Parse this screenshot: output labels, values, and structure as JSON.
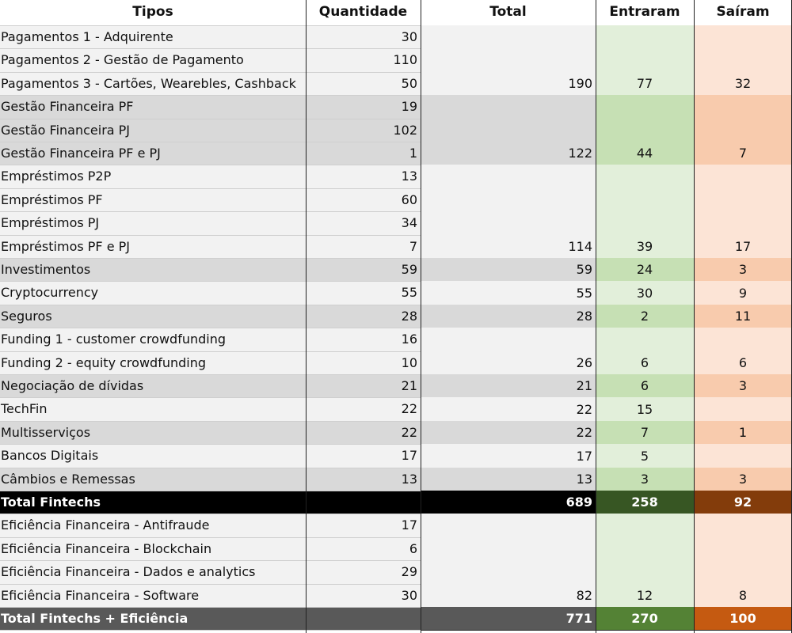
{
  "headers": {
    "tipos": "Tipos",
    "quantidade": "Quantidade",
    "total": "Total",
    "entraram": "Entraram",
    "sairam": "Saíram"
  },
  "rows": [
    {
      "tipo": "Pagamentos 1 - Adquirente",
      "quantidade": "30"
    },
    {
      "tipo": "Pagamentos 2 - Gestão de Pagamento",
      "quantidade": "110"
    },
    {
      "tipo": "Pagamentos 3 - Cartões, Wearebles, Cashback",
      "quantidade": "50"
    },
    {
      "tipo": "Gestão Financeira PF",
      "quantidade": "19"
    },
    {
      "tipo": "Gestão Financeira PJ",
      "quantidade": "102"
    },
    {
      "tipo": "Gestão Financeira PF e PJ",
      "quantidade": "1"
    },
    {
      "tipo": "Empréstimos P2P",
      "quantidade": "13"
    },
    {
      "tipo": "Empréstimos PF",
      "quantidade": "60"
    },
    {
      "tipo": "Empréstimos PJ",
      "quantidade": "34"
    },
    {
      "tipo": "Empréstimos PF e PJ",
      "quantidade": "7"
    },
    {
      "tipo": "Investimentos",
      "quantidade": "59"
    },
    {
      "tipo": "Cryptocurrency",
      "quantidade": "55"
    },
    {
      "tipo": "Seguros",
      "quantidade": "28"
    },
    {
      "tipo": "Funding 1 - customer crowdfunding",
      "quantidade": "16"
    },
    {
      "tipo": "Funding 2 - equity crowdfunding",
      "quantidade": "10"
    },
    {
      "tipo": "Negociação de dívidas",
      "quantidade": "21"
    },
    {
      "tipo": "TechFin",
      "quantidade": "22"
    },
    {
      "tipo": "Multisserviços",
      "quantidade": "22"
    },
    {
      "tipo": "Bancos Digitais",
      "quantidade": "17"
    },
    {
      "tipo": "Câmbios e Remessas",
      "quantidade": "13"
    },
    {
      "tipo": "Total Fintechs",
      "quantidade": ""
    },
    {
      "tipo": "Eficiência Financeira - Antifraude",
      "quantidade": "17"
    },
    {
      "tipo": "Eficiência Financeira - Blockchain",
      "quantidade": "6"
    },
    {
      "tipo": "Eficiência Financeira - Dados e analytics",
      "quantidade": "29"
    },
    {
      "tipo": "Eficiência Financeira - Software",
      "quantidade": "30"
    },
    {
      "tipo": "Total Fintechs + Eficiência",
      "quantidade": ""
    }
  ],
  "groups": [
    {
      "label": "Pagamentos",
      "total": "190",
      "entraram": "77",
      "sairam": "32"
    },
    {
      "label": "Gestão Financeira",
      "total": "122",
      "entraram": "44",
      "sairam": "7"
    },
    {
      "label": "Empréstimos",
      "total": "114",
      "entraram": "39",
      "sairam": "17"
    },
    {
      "label": "Investimentos",
      "total": "59",
      "entraram": "24",
      "sairam": "3"
    },
    {
      "label": "Cryptocurrency",
      "total": "55",
      "entraram": "30",
      "sairam": "9"
    },
    {
      "label": "Seguros",
      "total": "28",
      "entraram": "2",
      "sairam": "11"
    },
    {
      "label": "Funding",
      "total": "26",
      "entraram": "6",
      "sairam": "6"
    },
    {
      "label": "Negociação de dívidas",
      "total": "21",
      "entraram": "6",
      "sairam": "3"
    },
    {
      "label": "TechFin",
      "total": "22",
      "entraram": "15",
      "sairam": ""
    },
    {
      "label": "Multisserviços",
      "total": "22",
      "entraram": "7",
      "sairam": "1"
    },
    {
      "label": "Bancos Digitais",
      "total": "17",
      "entraram": "5",
      "sairam": ""
    },
    {
      "label": "Câmbios e Remessas",
      "total": "13",
      "entraram": "3",
      "sairam": "3"
    },
    {
      "label": "Total Fintechs",
      "total": "689",
      "entraram": "258",
      "sairam": "92"
    },
    {
      "label": "Eficiência Financeira",
      "total": "82",
      "entraram": "12",
      "sairam": "8"
    },
    {
      "label": "Total Fintechs + Eficiência",
      "total": "771",
      "entraram": "270",
      "sairam": "100"
    }
  ],
  "colors": {
    "row_light": "#f2f2f2",
    "row_dark": "#d9d9d9",
    "green_light": "#e2efda",
    "green_dark": "#c6e0b4",
    "orange_light": "#fce4d6",
    "orange_dark": "#f8cbad",
    "total_black": "#000000",
    "total_gray": "#595959",
    "green_total1": "#375623",
    "green_total2": "#548235",
    "orange_total1": "#833c0b",
    "orange_total2": "#c55a11"
  }
}
